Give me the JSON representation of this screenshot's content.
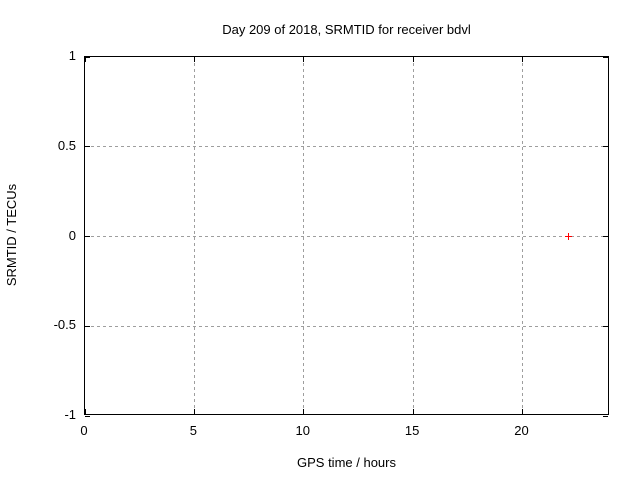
{
  "chart_data": {
    "type": "scatter",
    "title": "Day 209 of 2018, SRMTID for receiver bdvl",
    "xlabel": "GPS time / hours",
    "ylabel": "SRMTID / TECUs",
    "xlim": [
      0,
      24
    ],
    "ylim": [
      -1,
      1
    ],
    "xticks": [
      0,
      5,
      10,
      15,
      20
    ],
    "yticks": [
      -1,
      -0.5,
      0,
      0.5,
      1
    ],
    "grid": true,
    "grid_style": "dashed",
    "legend": "none",
    "series": [
      {
        "name": "SRMTID",
        "marker": "plus",
        "color": "#ff0000",
        "points": [
          {
            "x": 22.1,
            "y": 0.0
          }
        ]
      }
    ],
    "colors": {
      "background": "#ffffff",
      "frame": "#000000",
      "grid": "#9e9e9e",
      "text": "#000000",
      "point": "#ff0000"
    }
  }
}
